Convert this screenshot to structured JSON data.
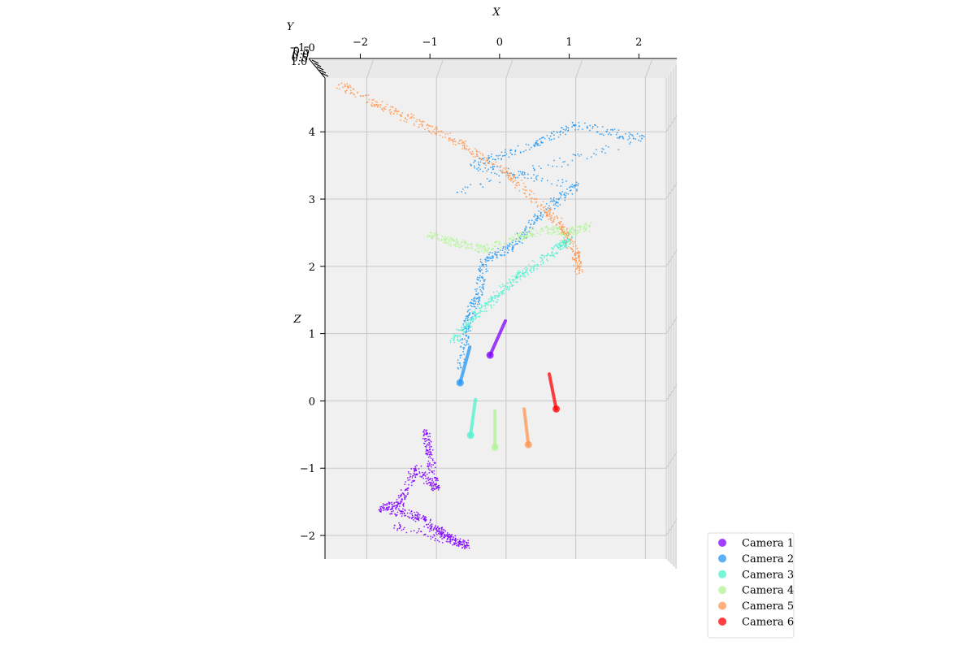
{
  "chart_data": {
    "type": "scatter",
    "projection": "3d",
    "title": "",
    "xlabel": "X",
    "ylabel": "Y",
    "zlabel": "Z",
    "xlim": [
      -2.6,
      2.3
    ],
    "zlim": [
      -2.35,
      4.8
    ],
    "x_ticks": [
      -2,
      -1,
      0,
      1,
      2
    ],
    "z_ticks": [
      -2,
      -1,
      0,
      1,
      2,
      3,
      4
    ],
    "y_ticks_text": [
      "−1.0",
      "0.5",
      "0.0",
      "0.5",
      "1.0"
    ],
    "legend_position": "lower-right",
    "grid": true,
    "series": [
      {
        "name": "Camera 1",
        "color": "#8000ff",
        "camera": {
          "x": -0.23,
          "z": 0.68
        },
        "direction_tip": {
          "x": -0.01,
          "z": 1.19
        },
        "point_cloud_samples": [
          [
            -1.15,
            -0.45
          ],
          [
            -1.1,
            -0.8
          ],
          [
            -1.0,
            -1.3
          ],
          [
            -1.3,
            -1.0
          ],
          [
            -1.5,
            -1.5
          ],
          [
            -1.8,
            -1.6
          ],
          [
            -1.3,
            -1.7
          ],
          [
            -1.0,
            -1.9
          ],
          [
            -0.8,
            -2.05
          ],
          [
            -0.55,
            -2.15
          ],
          [
            -1.6,
            -1.85
          ]
        ]
      },
      {
        "name": "Camera 2",
        "color": "#2196f3",
        "camera": {
          "x": -0.66,
          "z": 0.27
        },
        "direction_tip": {
          "x": -0.52,
          "z": 0.8
        },
        "point_cloud_samples": [
          [
            -0.65,
            0.5
          ],
          [
            -0.55,
            1.2
          ],
          [
            -0.4,
            1.6
          ],
          [
            -0.3,
            2.1
          ],
          [
            0.1,
            2.3
          ],
          [
            0.5,
            2.8
          ],
          [
            1.0,
            3.2
          ],
          [
            -0.5,
            3.5
          ],
          [
            0.4,
            3.8
          ],
          [
            1.0,
            4.1
          ],
          [
            1.95,
            3.9
          ],
          [
            -0.7,
            3.1
          ]
        ]
      },
      {
        "name": "Camera 3",
        "color": "#4cf2ce",
        "camera": {
          "x": -0.51,
          "z": -0.51
        },
        "direction_tip": {
          "x": -0.44,
          "z": 0.02
        },
        "point_cloud_samples": [
          [
            -0.75,
            0.9
          ],
          [
            -0.5,
            1.2
          ],
          [
            -0.2,
            1.5
          ],
          [
            0.1,
            1.8
          ],
          [
            0.4,
            2.0
          ],
          [
            0.8,
            2.3
          ],
          [
            0.9,
            2.4
          ]
        ]
      },
      {
        "name": "Camera 4",
        "color": "#b2f396",
        "camera": {
          "x": -0.16,
          "z": -0.69
        },
        "direction_tip": {
          "x": -0.16,
          "z": -0.15
        },
        "point_cloud_samples": [
          [
            -1.1,
            2.45
          ],
          [
            -0.7,
            2.35
          ],
          [
            -0.3,
            2.25
          ],
          [
            0.2,
            2.45
          ],
          [
            0.6,
            2.55
          ],
          [
            0.9,
            2.5
          ],
          [
            1.2,
            2.6
          ]
        ]
      },
      {
        "name": "Camera 5",
        "color": "#ff9650",
        "camera": {
          "x": 0.32,
          "z": -0.65
        },
        "direction_tip": {
          "x": 0.26,
          "z": -0.12
        },
        "point_cloud_samples": [
          [
            -2.4,
            4.7
          ],
          [
            -1.8,
            4.4
          ],
          [
            -1.2,
            4.1
          ],
          [
            -0.6,
            3.8
          ],
          [
            0.0,
            3.4
          ],
          [
            0.5,
            2.9
          ],
          [
            0.8,
            2.6
          ],
          [
            1.0,
            2.2
          ],
          [
            1.05,
            1.9
          ]
        ]
      },
      {
        "name": "Camera 6",
        "color": "#ff0000",
        "camera": {
          "x": 0.72,
          "z": -0.12
        },
        "direction_tip": {
          "x": 0.62,
          "z": 0.4
        },
        "point_cloud_samples": []
      }
    ]
  }
}
